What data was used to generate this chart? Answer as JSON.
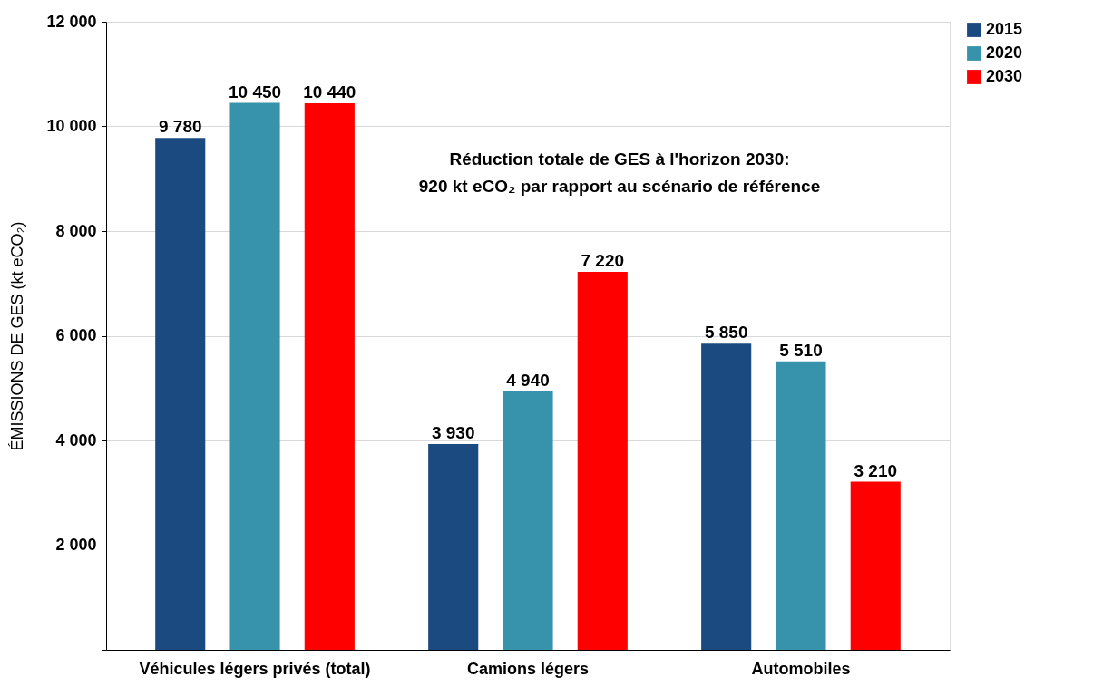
{
  "chart_data": {
    "type": "bar",
    "ylabel": "ÉMISSIONS DE GES (kt eCO₂)",
    "categories": [
      "Véhicules légers privés (total)",
      "Camions légers",
      "Automobiles"
    ],
    "series": [
      {
        "name": "2015",
        "color": "#1b4a80",
        "values": [
          9780,
          3930,
          5850
        ],
        "value_labels": [
          "9 780",
          "3 930",
          "5 850"
        ]
      },
      {
        "name": "2020",
        "color": "#3792ab",
        "values": [
          10450,
          4940,
          5510
        ],
        "value_labels": [
          "10 450",
          "4 940",
          "5 510"
        ]
      },
      {
        "name": "2030",
        "color": "#ff0000",
        "values": [
          10440,
          7220,
          3210
        ],
        "value_labels": [
          "10 440",
          "7 220",
          "3 210"
        ]
      }
    ],
    "ylim": [
      0,
      12000
    ],
    "yticks": [
      {
        "value": 0,
        "label": null
      },
      {
        "value": 2000,
        "label": "2 000"
      },
      {
        "value": 4000,
        "label": "4 000"
      },
      {
        "value": 6000,
        "label": "6 000"
      },
      {
        "value": 8000,
        "label": "8 000"
      },
      {
        "value": 10000,
        "label": "10 000"
      },
      {
        "value": 12000,
        "label": "12 000"
      }
    ],
    "grid": "y",
    "legend": "top right",
    "annotations": [
      "Réduction totale de GES à l'horizon 2030:\n920 kt eCO₂ par rapport au scénario de référence"
    ]
  }
}
